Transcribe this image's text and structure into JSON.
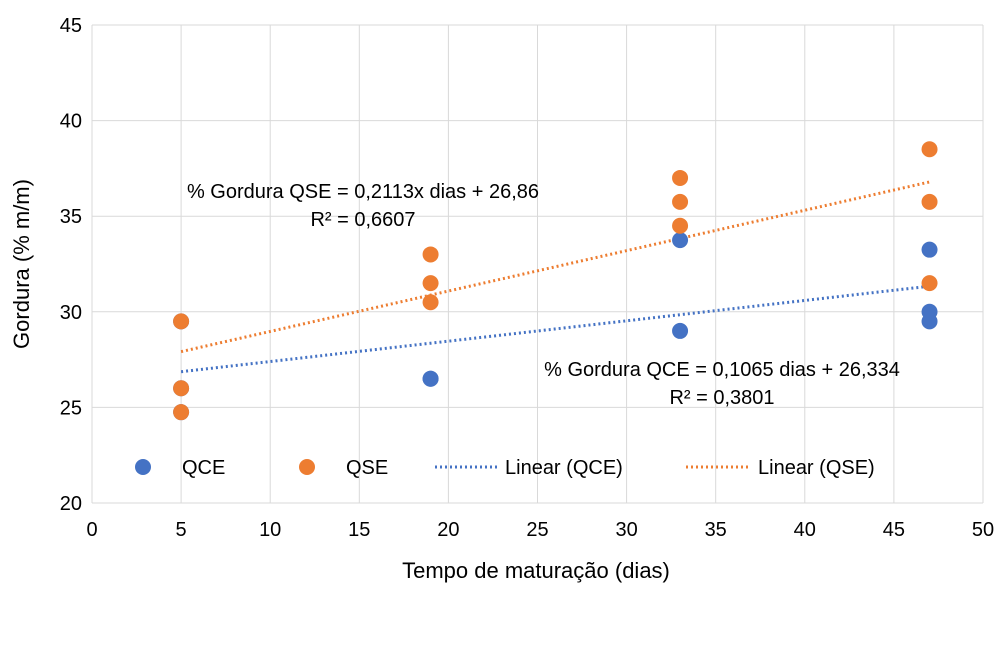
{
  "chart_data": {
    "type": "scatter",
    "title": "",
    "xlabel": "Tempo de maturação (dias)",
    "ylabel": "Gordura (% m/m)",
    "xlim": [
      0,
      50
    ],
    "ylim": [
      20,
      45
    ],
    "xticks": [
      0,
      5,
      10,
      15,
      20,
      25,
      30,
      35,
      40,
      45,
      50
    ],
    "yticks": [
      20,
      25,
      30,
      35,
      40,
      45
    ],
    "grid": true,
    "legend_position": "bottom",
    "series": [
      {
        "name": "QCE",
        "color": "#4472C4",
        "points": [
          {
            "x": 5,
            "y": 29.5
          },
          {
            "x": 5,
            "y": 26.0
          },
          {
            "x": 5,
            "y": 24.75
          },
          {
            "x": 19,
            "y": 26.5
          },
          {
            "x": 19,
            "y": 26.5
          },
          {
            "x": 33,
            "y": 33.75
          },
          {
            "x": 33,
            "y": 29.0
          },
          {
            "x": 47,
            "y": 33.25
          },
          {
            "x": 47,
            "y": 30.0
          },
          {
            "x": 47,
            "y": 29.5
          }
        ]
      },
      {
        "name": "QSE",
        "color": "#ED7D31",
        "points": [
          {
            "x": 5,
            "y": 29.5
          },
          {
            "x": 5,
            "y": 26.0
          },
          {
            "x": 5,
            "y": 24.75
          },
          {
            "x": 19,
            "y": 33.0
          },
          {
            "x": 19,
            "y": 31.5
          },
          {
            "x": 19,
            "y": 30.5
          },
          {
            "x": 33,
            "y": 37.0
          },
          {
            "x": 33,
            "y": 35.75
          },
          {
            "x": 33,
            "y": 34.5
          },
          {
            "x": 47,
            "y": 38.5
          },
          {
            "x": 47,
            "y": 35.75
          },
          {
            "x": 47,
            "y": 31.5
          }
        ]
      }
    ],
    "trendlines": [
      {
        "name": "Linear (QCE)",
        "color": "#4472C4",
        "slope": 0.1065,
        "intercept": 26.334,
        "x_range": [
          5,
          47
        ]
      },
      {
        "name": "Linear (QSE)",
        "color": "#ED7D31",
        "slope": 0.2113,
        "intercept": 26.86,
        "x_range": [
          5,
          47
        ]
      }
    ],
    "annotations": [
      {
        "text_line1": "% Gordura QSE = 0,2113x dias + 26,86",
        "text_line2": "R² = 0,6607"
      },
      {
        "text_line1": "% Gordura QCE = 0,1065 dias + 26,334",
        "text_line2": "R² = 0,3801"
      }
    ]
  }
}
